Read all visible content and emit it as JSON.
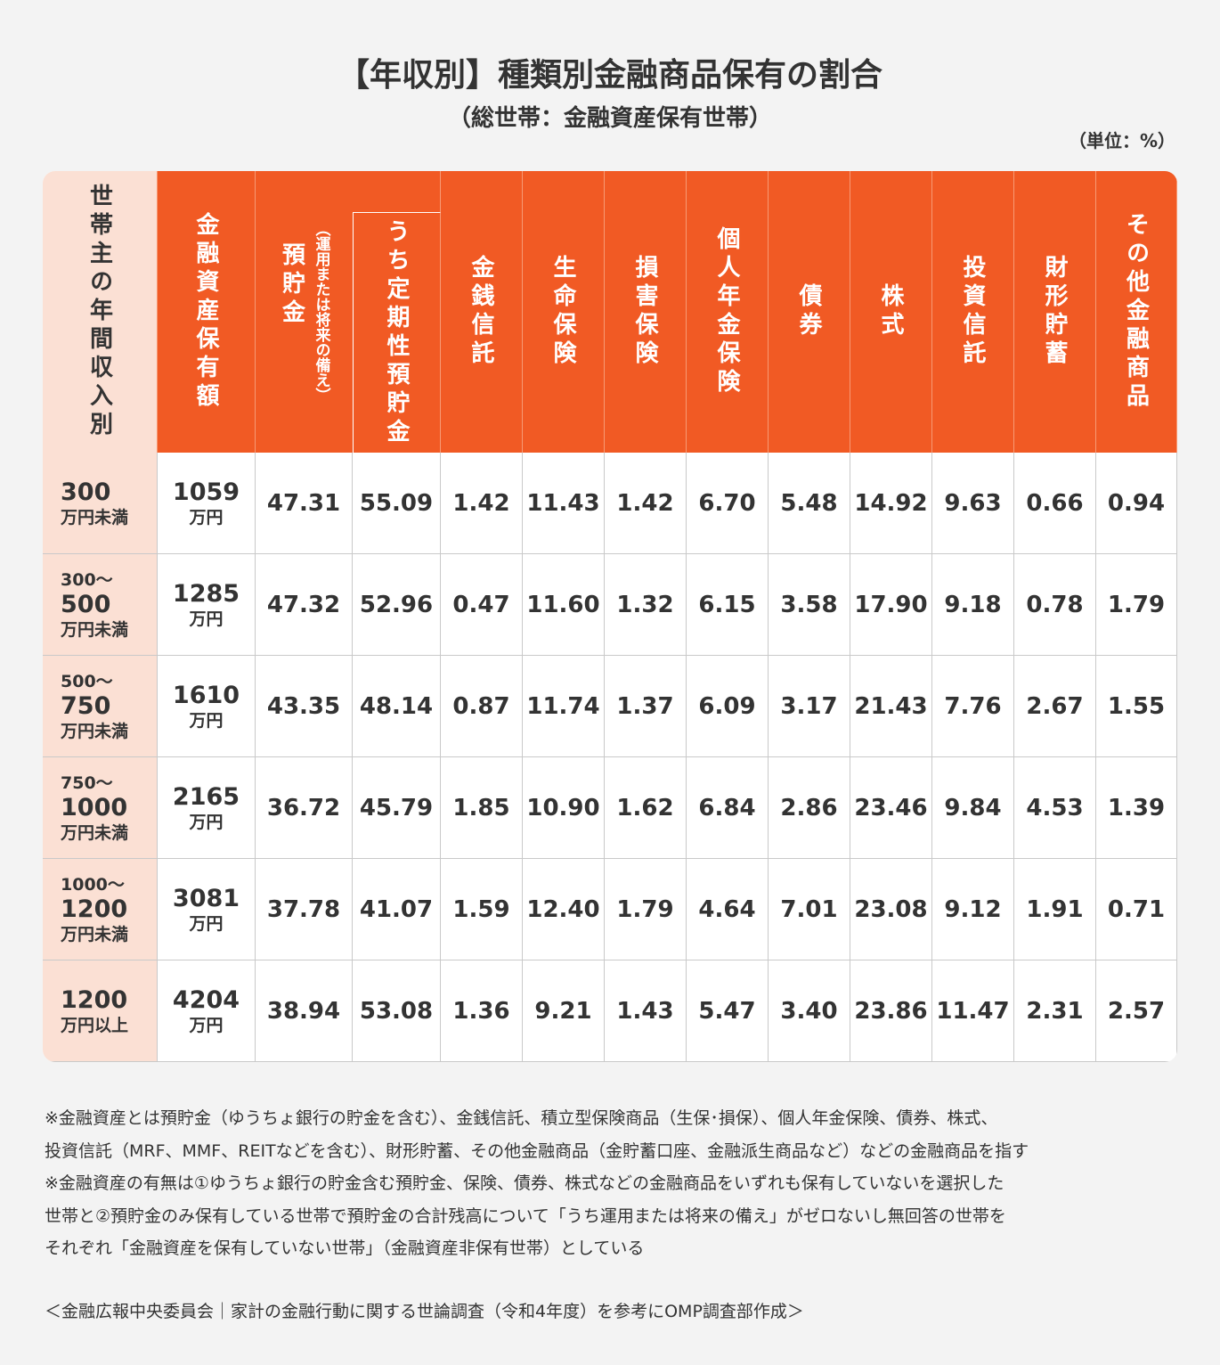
{
  "title": "【年収別】種類別金融商品保有の割合",
  "subtitle": "（総世帯：金融資産保有世帯）",
  "unit": "（単位：%）",
  "table": {
    "header": [
      "世帯主の年間収入別",
      "金融資産保有額",
      "預貯金",
      "うち定期性預貯金",
      "金銭信託",
      "生命保険",
      "損害保険",
      "個人年金保険",
      "債券",
      "株式",
      "投資信託",
      "財形貯蓄",
      "その他金融商品"
    ],
    "deposit_note": "（運用または将来の備え）",
    "rows": [
      {
        "income": [
          "300",
          "万円未満"
        ],
        "assets": [
          "1059",
          "万円"
        ],
        "values": [
          "47.31",
          "55.09",
          "1.42",
          "11.43",
          "1.42",
          "6.70",
          "5.48",
          "14.92",
          "9.63",
          "0.66",
          "0.94"
        ]
      },
      {
        "income": [
          "300～",
          "500",
          "万円未満"
        ],
        "assets": [
          "1285",
          "万円"
        ],
        "values": [
          "47.32",
          "52.96",
          "0.47",
          "11.60",
          "1.32",
          "6.15",
          "3.58",
          "17.90",
          "9.18",
          "0.78",
          "1.79"
        ]
      },
      {
        "income": [
          "500～",
          "750",
          "万円未満"
        ],
        "assets": [
          "1610",
          "万円"
        ],
        "values": [
          "43.35",
          "48.14",
          "0.87",
          "11.74",
          "1.37",
          "6.09",
          "3.17",
          "21.43",
          "7.76",
          "2.67",
          "1.55"
        ]
      },
      {
        "income": [
          "750～",
          "1000",
          "万円未満"
        ],
        "assets": [
          "2165",
          "万円"
        ],
        "values": [
          "36.72",
          "45.79",
          "1.85",
          "10.90",
          "1.62",
          "6.84",
          "2.86",
          "23.46",
          "9.84",
          "4.53",
          "1.39"
        ]
      },
      {
        "income": [
          "1000～",
          "1200",
          "万円未満"
        ],
        "assets": [
          "3081",
          "万円"
        ],
        "values": [
          "37.78",
          "41.07",
          "1.59",
          "12.40",
          "1.79",
          "4.64",
          "7.01",
          "23.08",
          "9.12",
          "1.91",
          "0.71"
        ]
      },
      {
        "income": [
          "1200",
          "万円以上"
        ],
        "assets": [
          "4204",
          "万円"
        ],
        "values": [
          "38.94",
          "53.08",
          "1.36",
          "9.21",
          "1.43",
          "5.47",
          "3.40",
          "23.86",
          "11.47",
          "2.31",
          "2.57"
        ]
      }
    ]
  },
  "notes": [
    "※金融資産とは預貯金（ゆうちょ銀行の貯金を含む）、金銭信託、積立型保険商品（生保･損保）、個人年金保険、債券、株式、",
    "投資信託（MRF、MMF、REITなどを含む）、財形貯蓄、その他金融商品（金貯蓄口座、金融派生商品など）などの金融商品を指す",
    "※金融資産の有無は①ゆうちょ銀行の貯金含む預貯金、保険、債券、株式などの金融商品をいずれも保有していないを選択した",
    "世帯と②預貯金のみ保有している世帯で預貯金の合計残高について「うち運用または将来の備え」がゼロないし無回答の世帯を",
    "それぞれ「金融資産を保有していない世帯」（金融資産非保有世帯）としている"
  ],
  "source": "＜金融広報中央委員会｜家計の金融行動に関する世論調査（令和4年度）を参考にOMP調査部作成＞"
}
